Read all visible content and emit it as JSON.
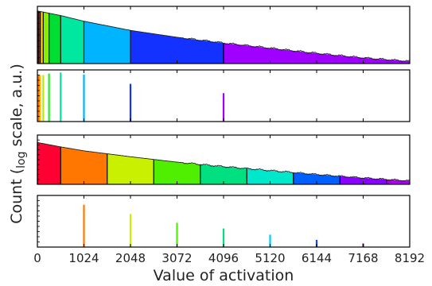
{
  "chart_data": {
    "type": "bar",
    "x_ticks": [
      0,
      1024,
      2048,
      3072,
      4096,
      5120,
      6144,
      7168,
      8192
    ],
    "x_tick_labels": [
      "0",
      "1024",
      "2048",
      "3072",
      "4096",
      "5120",
      "6144",
      "7168",
      "8192"
    ],
    "xlim": [
      0,
      8192
    ],
    "xlabel": "Value of activation",
    "ylabel_main": "Count (",
    "ylabel_log": "log",
    "ylabel_rest": " scale, a.u.)",
    "y_scale": "log",
    "panels": [
      {
        "kind": "histogram",
        "note": "log-spaced bins",
        "curve": [
          [
            0,
            0.92
          ],
          [
            512,
            0.84
          ],
          [
            1024,
            0.74
          ],
          [
            2048,
            0.58
          ],
          [
            3072,
            0.46
          ],
          [
            4096,
            0.36
          ],
          [
            5120,
            0.27
          ],
          [
            6144,
            0.18
          ],
          [
            7168,
            0.1
          ],
          [
            8192,
            0.04
          ]
        ],
        "bins": [
          {
            "x0": 0,
            "x1": 32,
            "color": "#ff0000"
          },
          {
            "x0": 32,
            "x1": 64,
            "color": "#ff6600"
          },
          {
            "x0": 64,
            "x1": 128,
            "color": "#ffcc00"
          },
          {
            "x0": 128,
            "x1": 256,
            "color": "#88ee00"
          },
          {
            "x0": 256,
            "x1": 512,
            "color": "#00dd33"
          },
          {
            "x0": 512,
            "x1": 1024,
            "color": "#00e8a0"
          },
          {
            "x0": 1024,
            "x1": 2048,
            "color": "#00b4ff"
          },
          {
            "x0": 2048,
            "x1": 4096,
            "color": "#1432ff"
          },
          {
            "x0": 4096,
            "x1": 8192,
            "color": "#a000ff"
          }
        ]
      },
      {
        "kind": "spikes",
        "spikes": [
          {
            "x": 32,
            "h": 0.9,
            "color": "#ff6600"
          },
          {
            "x": 64,
            "h": 0.9,
            "color": "#ffcc00"
          },
          {
            "x": 128,
            "h": 0.9,
            "color": "#b0f000"
          },
          {
            "x": 256,
            "h": 0.93,
            "color": "#20ee20"
          },
          {
            "x": 512,
            "h": 0.95,
            "color": "#00e8a0"
          },
          {
            "x": 1024,
            "h": 0.91,
            "color": "#00b4ff"
          },
          {
            "x": 2048,
            "h": 0.73,
            "color": "#1432ff"
          },
          {
            "x": 4096,
            "h": 0.55,
            "color": "#a000ff"
          }
        ]
      },
      {
        "kind": "histogram",
        "note": "linear bins",
        "curve": [
          [
            0,
            0.85
          ],
          [
            512,
            0.76
          ],
          [
            1024,
            0.68
          ],
          [
            2048,
            0.56
          ],
          [
            3072,
            0.45
          ],
          [
            4096,
            0.36
          ],
          [
            5120,
            0.28
          ],
          [
            6144,
            0.2
          ],
          [
            7168,
            0.13
          ],
          [
            8192,
            0.07
          ]
        ],
        "bins": [
          {
            "x0": 0,
            "x1": 512,
            "color": "#ff0033"
          },
          {
            "x0": 512,
            "x1": 1536,
            "color": "#ff7700"
          },
          {
            "x0": 1536,
            "x1": 2560,
            "color": "#c8f000"
          },
          {
            "x0": 2560,
            "x1": 3584,
            "color": "#50ee00"
          },
          {
            "x0": 3584,
            "x1": 4608,
            "color": "#00e080"
          },
          {
            "x0": 4608,
            "x1": 5632,
            "color": "#00e8cc"
          },
          {
            "x0": 5632,
            "x1": 6656,
            "color": "#0060ff"
          },
          {
            "x0": 6656,
            "x1": 7680,
            "color": "#8800ff"
          },
          {
            "x0": 7680,
            "x1": 8192,
            "color": "#aa00ee"
          }
        ]
      },
      {
        "kind": "spikes",
        "spikes": [
          {
            "x": 1024,
            "h": 0.82,
            "color": "#ff7700"
          },
          {
            "x": 2048,
            "h": 0.64,
            "color": "#c8f000"
          },
          {
            "x": 3072,
            "h": 0.47,
            "color": "#50ee00"
          },
          {
            "x": 4096,
            "h": 0.36,
            "color": "#00e080"
          },
          {
            "x": 5120,
            "h": 0.24,
            "color": "#00ccff"
          },
          {
            "x": 6144,
            "h": 0.14,
            "color": "#2040ff"
          },
          {
            "x": 7168,
            "h": 0.07,
            "color": "#9900ff"
          }
        ]
      }
    ]
  }
}
